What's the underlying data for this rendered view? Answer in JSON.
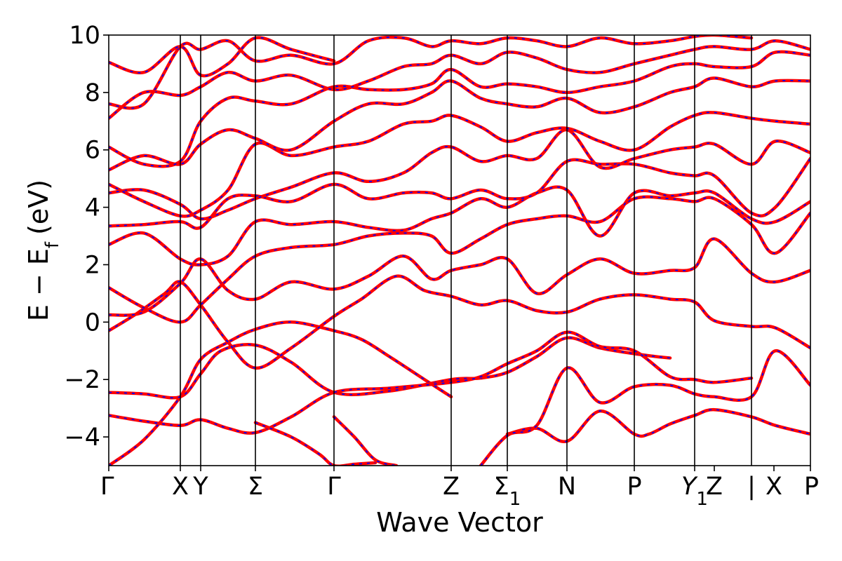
{
  "chart_data": {
    "type": "line",
    "title": "",
    "xlabel": "Wave Vector",
    "ylabel": "E − E",
    "ylabel_subscript": "f",
    "ylabel_unit": "(eV)",
    "ylim": [
      -5,
      10
    ],
    "yticks": [
      -4,
      -2,
      0,
      2,
      4,
      6,
      8,
      10
    ],
    "ytick_labels": [
      "−4",
      "−2",
      "0",
      "2",
      "4",
      "6",
      "8",
      "10"
    ],
    "xlim": [
      0,
      10
    ],
    "grid": false,
    "legend": "none",
    "colors": {
      "band": "#ff0000",
      "overlay": "#0000ff",
      "divider": "#000000"
    },
    "kpoints": [
      {
        "label": "Γ",
        "x": 0
      },
      {
        "label": "X",
        "x": 1.02
      },
      {
        "label": "Y",
        "x": 1.31
      },
      {
        "label": "Σ",
        "x": 2.09
      },
      {
        "label": "Γ",
        "x": 3.21
      },
      {
        "label": "Z",
        "x": 4.88
      },
      {
        "label": "Σ",
        "sub": "1",
        "x": 5.68
      },
      {
        "label": "N",
        "x": 6.53
      },
      {
        "label": "P",
        "x": 7.49
      },
      {
        "label": "Y",
        "sub": "1",
        "italic": true,
        "x": 8.35
      },
      {
        "label": "Z",
        "x": 8.63
      },
      {
        "label": "|",
        "x": 9.16
      },
      {
        "label": "X",
        "x": 9.48
      },
      {
        "label": "P",
        "x": 10
      }
    ],
    "dividers": [
      1.02,
      1.31,
      2.09,
      3.21,
      4.88,
      5.68,
      6.53,
      7.49,
      8.35,
      9.16
    ],
    "bands": [
      {
        "name": "b1",
        "x": [
          0,
          0.5,
          1.02,
          1.31,
          1.7,
          2.09,
          2.6,
          3.21,
          3.6,
          4.0,
          4.5,
          4.88
        ],
        "y": [
          -5.0,
          -4.1,
          -2.6,
          -1.3,
          -0.7,
          -0.25,
          0.0,
          -0.3,
          -0.6,
          -1.2,
          -2.0,
          -2.6
        ]
      },
      {
        "name": "b2",
        "x": [
          0,
          0.5,
          1.02,
          1.31,
          1.6,
          2.09,
          2.6,
          3.21,
          4.0,
          4.88,
          5.3,
          5.68,
          6.1,
          6.53,
          7.0,
          7.49,
          7.8,
          8.0
        ],
        "y": [
          -2.45,
          -2.5,
          -2.6,
          -1.8,
          -1.0,
          -0.8,
          -1.4,
          -2.45,
          -2.4,
          -2.0,
          -1.95,
          -1.75,
          -1.2,
          -0.55,
          -0.9,
          -1.1,
          -1.2,
          -1.25
        ]
      },
      {
        "name": "b3",
        "x": [
          0,
          0.5,
          1.02,
          1.31,
          1.7,
          2.09,
          2.6,
          3.21,
          4.0,
          4.88,
          5.3,
          5.68,
          6.1,
          6.53,
          7.0,
          7.49,
          8.0,
          8.35,
          8.63,
          9.16
        ],
        "y": [
          -3.25,
          -3.45,
          -3.6,
          -3.4,
          -3.7,
          -3.85,
          -3.3,
          -2.45,
          -2.3,
          -2.1,
          -1.9,
          -1.45,
          -1.0,
          -0.35,
          -0.85,
          -1.0,
          -1.9,
          -2.0,
          -2.1,
          -1.95
        ]
      },
      {
        "name": "b4",
        "x": [
          2.09,
          2.6,
          3.0,
          3.21,
          3.5,
          3.8
        ],
        "y": [
          -3.5,
          -4.0,
          -4.6,
          -5.0,
          -4.95,
          -4.9
        ]
      },
      {
        "name": "b5",
        "x": [
          3.21,
          3.5,
          3.8,
          4.1
        ],
        "y": [
          -3.3,
          -4.0,
          -4.8,
          -5.0
        ]
      },
      {
        "name": "b6",
        "x": [
          5.68,
          6.1,
          6.53,
          7.0,
          7.49,
          7.7,
          8.0,
          8.35,
          8.63,
          9.16,
          9.5,
          10.0
        ],
        "y": [
          -3.9,
          -3.7,
          -4.15,
          -3.1,
          -3.9,
          -3.9,
          -3.55,
          -3.25,
          -3.05,
          -3.3,
          -3.6,
          -3.9
        ]
      },
      {
        "name": "b7",
        "x": [
          5.3,
          5.68,
          6.1,
          6.53,
          7.0,
          7.49,
          8.0,
          8.35,
          8.63,
          9.16,
          9.5,
          10.0
        ],
        "y": [
          -5.0,
          -3.95,
          -3.6,
          -1.6,
          -2.8,
          -2.25,
          -2.2,
          -2.5,
          -2.6,
          -2.6,
          -1.0,
          -2.2
        ]
      },
      {
        "name": "b8",
        "x": [
          0,
          0.4,
          0.8,
          1.02,
          1.31,
          1.7,
          2.09,
          2.6,
          3.21,
          3.6,
          4.1,
          4.5,
          4.88,
          5.3,
          5.68,
          6.1,
          6.53,
          7.0,
          7.49,
          8.0,
          8.35,
          8.63,
          9.16,
          9.5,
          10.0
        ],
        "y": [
          -0.3,
          0.3,
          1.0,
          1.4,
          0.6,
          -0.7,
          -1.6,
          -0.9,
          0.2,
          0.8,
          1.6,
          1.1,
          0.9,
          0.6,
          0.75,
          0.4,
          0.35,
          0.8,
          0.95,
          0.8,
          0.7,
          0.05,
          -0.15,
          -0.2,
          -0.9
        ]
      },
      {
        "name": "b9",
        "x": [
          0,
          0.5,
          1.02,
          1.31,
          1.7,
          2.09,
          2.6,
          3.21,
          3.7,
          4.2,
          4.6,
          4.88,
          5.3,
          5.68,
          6.1,
          6.53,
          7.0,
          7.49,
          8.0,
          8.35,
          8.63,
          9.16,
          9.5,
          10.0
        ],
        "y": [
          0.25,
          0.35,
          1.35,
          2.2,
          1.1,
          0.8,
          1.4,
          1.15,
          1.6,
          2.3,
          1.5,
          1.8,
          2.0,
          2.2,
          1.0,
          1.65,
          2.2,
          1.7,
          1.8,
          1.9,
          2.9,
          1.7,
          1.4,
          1.8
        ]
      },
      {
        "name": "b10",
        "x": [
          0,
          0.5,
          1.02,
          1.31,
          1.7,
          2.09,
          2.6,
          3.21,
          3.7,
          4.2,
          4.6,
          4.88,
          5.3,
          5.68,
          6.1,
          6.53,
          7.0,
          7.49,
          8.0,
          8.35,
          8.63,
          9.16,
          9.5,
          10.0
        ],
        "y": [
          1.2,
          0.5,
          0.0,
          0.6,
          1.5,
          2.3,
          2.6,
          2.7,
          3.0,
          3.1,
          3.0,
          2.4,
          2.9,
          3.4,
          3.6,
          3.7,
          3.5,
          4.3,
          4.3,
          4.2,
          4.3,
          3.4,
          2.4,
          3.8
        ]
      },
      {
        "name": "b11",
        "x": [
          0,
          0.5,
          1.02,
          1.31,
          1.7,
          2.09,
          2.6,
          3.21,
          3.7,
          4.2,
          4.6,
          4.88,
          5.3,
          5.68,
          6.1,
          6.53,
          7.0,
          7.49,
          8.0,
          8.35,
          8.63,
          9.16,
          9.5,
          10.0
        ],
        "y": [
          2.7,
          3.1,
          2.2,
          2.0,
          2.3,
          3.5,
          3.4,
          3.5,
          3.3,
          3.2,
          3.6,
          3.8,
          4.3,
          4.0,
          4.5,
          4.6,
          3.0,
          4.5,
          4.4,
          4.5,
          4.5,
          3.6,
          3.5,
          4.2
        ]
      },
      {
        "name": "b12",
        "x": [
          0,
          0.5,
          1.02,
          1.31,
          1.7,
          2.09,
          2.6,
          3.21,
          3.7,
          4.2,
          4.6,
          4.88,
          5.3,
          5.68,
          6.1,
          6.53,
          7.0,
          7.49,
          8.0,
          8.35,
          8.63,
          9.16,
          9.5,
          10.0
        ],
        "y": [
          3.35,
          3.4,
          3.5,
          3.3,
          4.3,
          4.4,
          4.2,
          4.8,
          4.3,
          4.5,
          4.5,
          4.3,
          4.6,
          4.3,
          4.5,
          5.6,
          5.5,
          5.5,
          5.2,
          5.1,
          5.1,
          3.8,
          4.0,
          5.7
        ]
      },
      {
        "name": "b13",
        "x": [
          0,
          0.5,
          1.02,
          1.31,
          1.7,
          2.09,
          2.6,
          3.21,
          3.7,
          4.2,
          4.6,
          4.88,
          5.3,
          5.68,
          6.1,
          6.53,
          7.0,
          7.49,
          8.0,
          8.35,
          8.63,
          9.16,
          9.5,
          10.0
        ],
        "y": [
          4.5,
          4.6,
          4.1,
          3.6,
          3.9,
          4.3,
          4.7,
          5.2,
          4.9,
          5.2,
          5.9,
          6.1,
          5.6,
          5.8,
          5.7,
          6.7,
          5.4,
          5.7,
          6.0,
          6.1,
          6.2,
          5.5,
          6.3,
          5.9
        ]
      },
      {
        "name": "b14",
        "x": [
          0,
          0.5,
          1.02,
          1.31,
          1.7,
          2.09,
          2.6,
          3.21,
          3.7,
          4.2,
          4.6,
          4.88,
          5.3,
          5.68,
          6.1,
          6.53,
          7.0,
          7.49,
          8.0,
          8.35,
          8.63,
          9.16,
          9.5,
          10.0
        ],
        "y": [
          4.8,
          4.2,
          3.7,
          3.9,
          4.6,
          6.2,
          5.8,
          6.1,
          6.3,
          6.9,
          7.0,
          7.2,
          6.8,
          6.3,
          6.6,
          6.75,
          6.3,
          6.0,
          6.8,
          7.2,
          7.3,
          7.1,
          7.0,
          6.9
        ]
      },
      {
        "name": "b15",
        "x": [
          0,
          0.5,
          1.02,
          1.31,
          1.7,
          2.09,
          2.6,
          3.21,
          3.7,
          4.2,
          4.6,
          4.88,
          5.3,
          5.68,
          6.1,
          6.53,
          7.0,
          7.49,
          8.0,
          8.35,
          8.63,
          9.16,
          9.5,
          10.0
        ],
        "y": [
          5.3,
          5.8,
          5.5,
          6.2,
          6.7,
          6.4,
          6.0,
          7.0,
          7.6,
          7.6,
          8.0,
          8.4,
          7.8,
          7.6,
          7.5,
          7.8,
          7.3,
          7.5,
          8.0,
          8.2,
          8.5,
          8.2,
          8.4,
          8.4
        ]
      },
      {
        "name": "b16",
        "x": [
          0,
          0.5,
          1.02,
          1.31,
          1.7,
          2.09,
          2.6,
          3.21,
          3.7,
          4.2,
          4.6,
          4.88,
          5.3,
          5.68,
          6.1,
          6.53,
          7.0,
          7.49,
          8.0,
          8.35,
          8.63,
          9.16,
          9.5,
          10.0
        ],
        "y": [
          6.1,
          5.5,
          5.6,
          7.0,
          7.8,
          7.7,
          7.6,
          8.2,
          8.1,
          8.1,
          8.3,
          8.8,
          8.2,
          8.3,
          8.2,
          8.0,
          8.2,
          8.4,
          8.9,
          9.0,
          8.9,
          8.9,
          9.4,
          9.3
        ]
      },
      {
        "name": "b17",
        "x": [
          0,
          0.5,
          1.02,
          1.31,
          1.7,
          2.09,
          2.6,
          3.21,
          3.7,
          4.2,
          4.6,
          4.88,
          5.3,
          5.68,
          6.1,
          6.53,
          7.0,
          7.49,
          8.0,
          8.35,
          8.63,
          9.16,
          9.5,
          10.0
        ],
        "y": [
          7.1,
          8.0,
          7.9,
          8.2,
          8.7,
          8.4,
          8.6,
          8.1,
          8.4,
          8.9,
          9.0,
          9.3,
          9.0,
          9.4,
          9.2,
          8.8,
          8.7,
          9.0,
          9.3,
          9.5,
          9.6,
          9.5,
          9.8,
          9.5
        ]
      },
      {
        "name": "b18",
        "x": [
          0,
          0.5,
          1.02,
          1.31,
          1.7,
          2.09,
          2.6,
          3.21,
          3.7,
          4.2,
          4.6,
          4.88,
          5.3,
          5.68,
          6.1,
          6.53,
          7.0,
          7.49,
          8.0,
          8.35,
          8.63,
          9.16
        ],
        "y": [
          7.6,
          7.6,
          9.6,
          9.5,
          9.8,
          9.1,
          9.3,
          9.0,
          9.8,
          9.9,
          9.6,
          9.8,
          9.7,
          9.9,
          9.8,
          9.6,
          9.9,
          9.7,
          9.8,
          9.95,
          10.0,
          9.9
        ]
      },
      {
        "name": "b19",
        "x": [
          0,
          0.5,
          1.02,
          1.31,
          1.7,
          2.09,
          2.6,
          3.21
        ],
        "y": [
          9.05,
          8.7,
          9.6,
          8.6,
          9.0,
          9.9,
          9.5,
          9.1
        ]
      }
    ]
  }
}
